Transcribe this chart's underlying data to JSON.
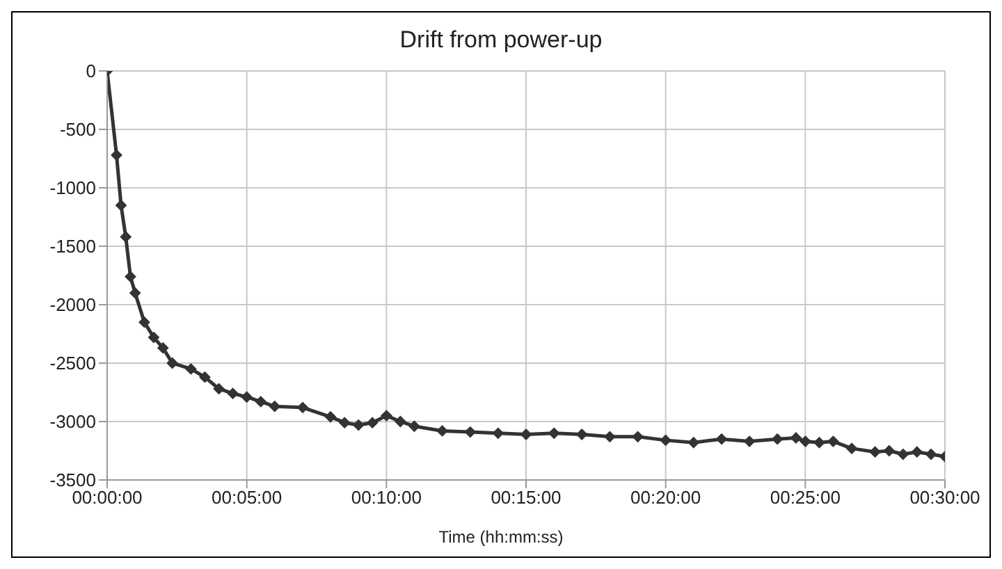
{
  "chart_data": {
    "type": "line",
    "title": "Drift from power-up",
    "xlabel": "Time (hh:mm:ss)",
    "x": [
      0,
      0.0056,
      0.0083,
      0.0111,
      0.0139,
      0.0167,
      0.0222,
      0.0278,
      0.0333,
      0.0389,
      0.05,
      0.0583,
      0.0667,
      0.075,
      0.0833,
      0.0917,
      0.1,
      0.1167,
      0.1333,
      0.1417,
      0.15,
      0.1583,
      0.1667,
      0.175,
      0.1833,
      0.2,
      0.2167,
      0.2333,
      0.25,
      0.2667,
      0.2833,
      0.3,
      0.3167,
      0.3333,
      0.35,
      0.3667,
      0.3833,
      0.4,
      0.4111,
      0.4167,
      0.425,
      0.4333,
      0.4444,
      0.4583,
      0.4667,
      0.475,
      0.4833,
      0.4917,
      0.5
    ],
    "series": [
      {
        "color": "#333333",
        "values": [
          0,
          -720,
          -1150,
          -1420,
          -1760,
          -1900,
          -2150,
          -2280,
          -2370,
          -2500,
          -2550,
          -2620,
          -2720,
          -2760,
          -2790,
          -2830,
          -2870,
          -2880,
          -2960,
          -3010,
          -3030,
          -3010,
          -2950,
          -3000,
          -3040,
          -3080,
          -3090,
          -3100,
          -3110,
          -3100,
          -3110,
          -3130,
          -3130,
          -3160,
          -3180,
          -3150,
          -3170,
          -3150,
          -3140,
          -3170,
          -3180,
          -3170,
          -3230,
          -3260,
          -3250,
          -3280,
          -3260,
          -3280,
          -3300
        ]
      }
    ],
    "xlim": [
      0,
      0.5
    ],
    "xticks": [
      {
        "value": 0,
        "label": "00:00:00"
      },
      {
        "value": 0.08333333,
        "label": "00:05:00"
      },
      {
        "value": 0.16666667,
        "label": "00:10:00"
      },
      {
        "value": 0.25,
        "label": "00:15:00"
      },
      {
        "value": 0.33333333,
        "label": "00:20:00"
      },
      {
        "value": 0.41666667,
        "label": "00:25:00"
      },
      {
        "value": 0.5,
        "label": "00:30:00"
      }
    ],
    "ylim": [
      -3500,
      0
    ],
    "yticks": [
      -3500,
      -3000,
      -2500,
      -2000,
      -1500,
      -1000,
      -500,
      0
    ],
    "grid": true,
    "marker": "diamond",
    "line_style": "solid",
    "legend": false
  }
}
